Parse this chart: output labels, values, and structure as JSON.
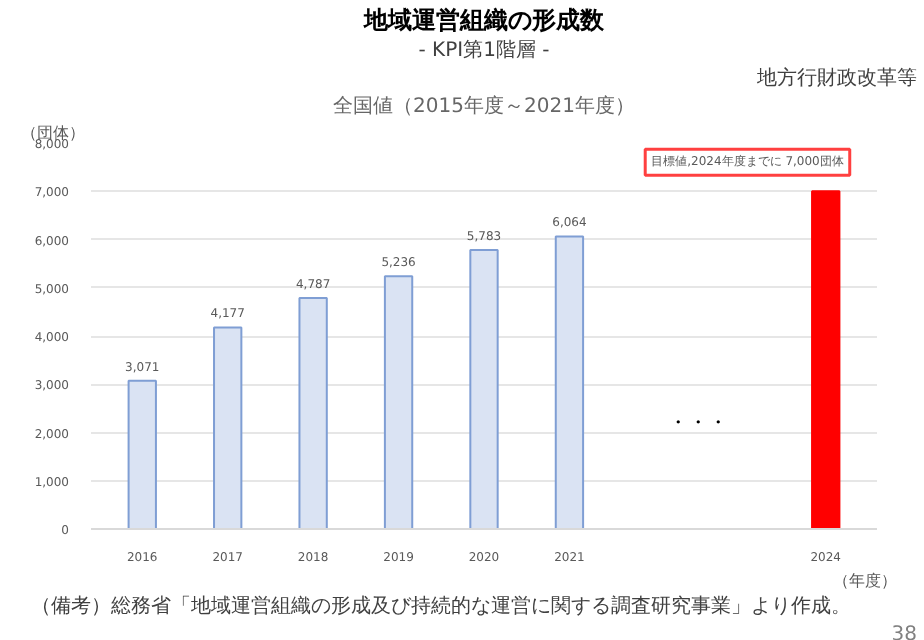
{
  "chart_data": {
    "type": "bar",
    "title": "地域運営組織の形成数",
    "subtitle": "- KPI第1階層 -",
    "ylabel": "（団体）",
    "xlabel": "（年度）",
    "categories": [
      "2016",
      "2017",
      "2018",
      "2019",
      "2020",
      "2021",
      null,
      null,
      "2024"
    ],
    "values": [
      3071,
      4177,
      4787,
      5236,
      5783,
      6064,
      null,
      null,
      7000
    ],
    "colors": [
      "#dae3f3",
      "#dae3f3",
      "#dae3f3",
      "#dae3f3",
      "#dae3f3",
      "#dae3f3",
      "#dae3f3",
      "#dae3f3",
      "#ff0000"
    ],
    "value_labels": [
      "3,071",
      "4,177",
      "4,787",
      "5,236",
      "5,783",
      "6,064",
      null,
      null,
      null
    ],
    "ylim": [
      0,
      8000
    ],
    "yticks": [
      {
        "value": 0,
        "label": "0"
      },
      {
        "value": 1000,
        "label": "1,000"
      },
      {
        "value": 2000,
        "label": "2,000"
      },
      {
        "value": 3000,
        "label": "3,000"
      },
      {
        "value": 4000,
        "label": "4,000"
      },
      {
        "value": 5000,
        "label": "5,000"
      },
      {
        "value": 6000,
        "label": "6,000"
      },
      {
        "value": 7000,
        "label": "7,000"
      },
      {
        "value": 8000,
        "label": "8,000"
      }
    ],
    "grid": "y",
    "annotations": [
      "地方行財政改革等",
      "全国値（2015年度～2021年度）",
      {
        "text": "目標値,2024年度までに 7,000団体",
        "x": "2024",
        "y": 7000
      },
      "・・・",
      "（備考）総務省「地域運営組織の形成及び持続的な運営に関する調査研究事業」より作成。",
      "38"
    ]
  }
}
